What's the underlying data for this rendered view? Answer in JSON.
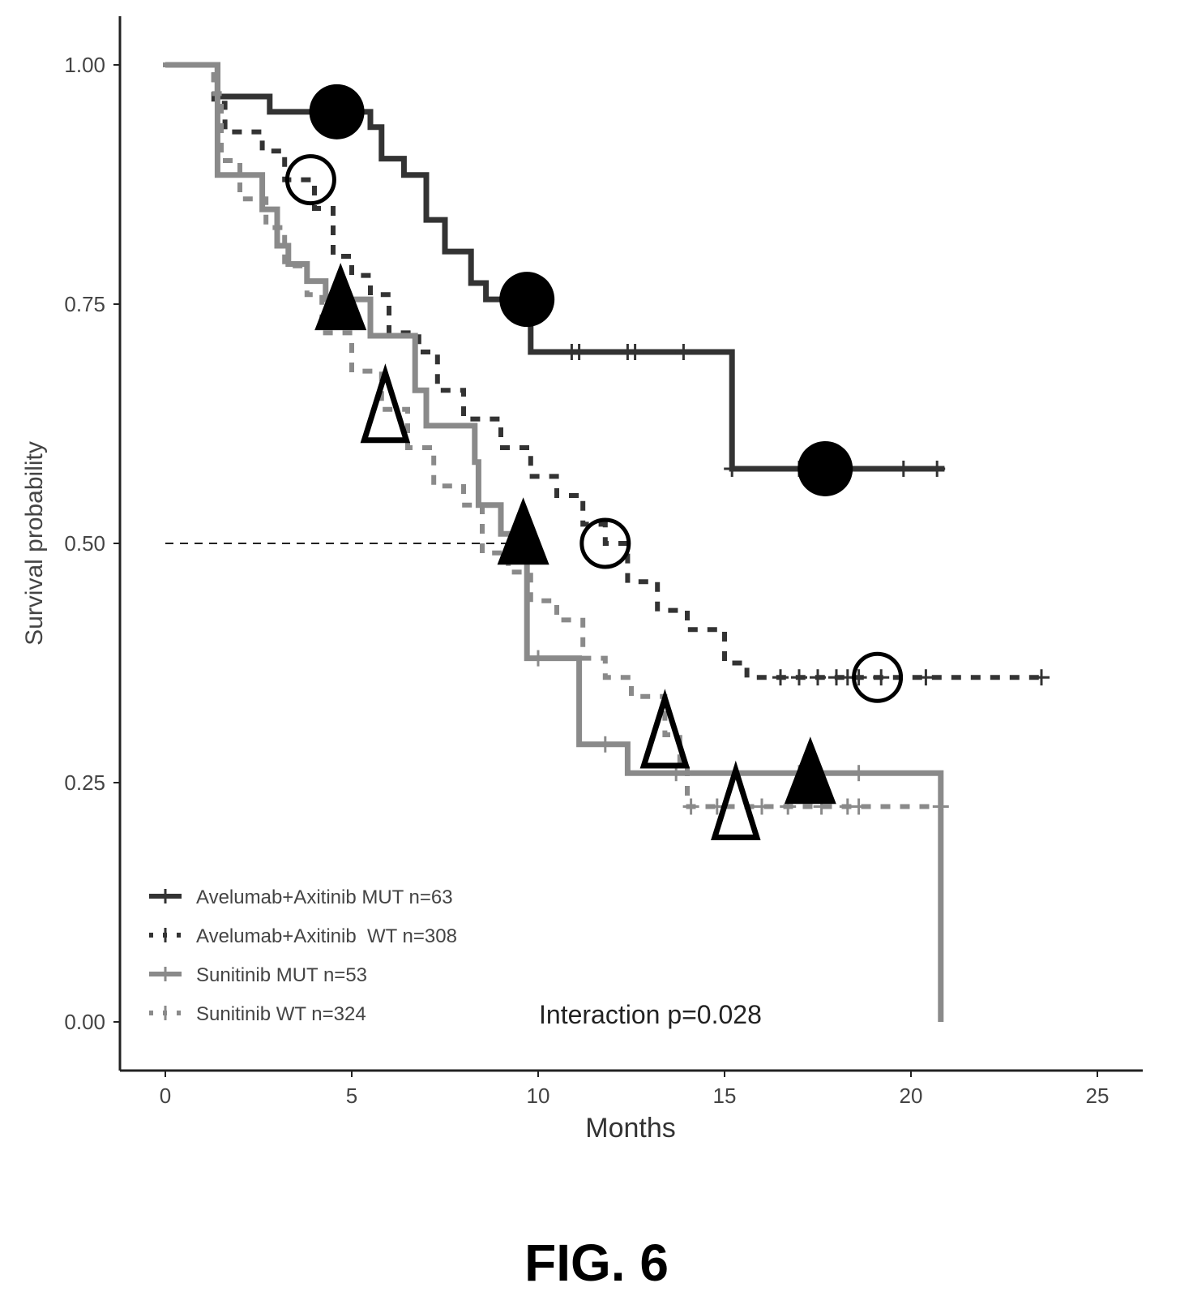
{
  "chart_data": {
    "type": "line",
    "subtype": "kaplan-meier",
    "title": "",
    "xlabel": "Months",
    "ylabel": "Survival probability",
    "xlim": [
      -1.2,
      26.5
    ],
    "ylim": [
      -0.05,
      1.05
    ],
    "x_ticks": [
      0,
      5,
      10,
      15,
      20,
      25
    ],
    "x_tick_labels": [
      "0",
      "5",
      "10",
      "15",
      "20",
      "25"
    ],
    "y_ticks": [
      0,
      0.25,
      0.5,
      0.75,
      1.0
    ],
    "y_tick_labels": [
      "0.00",
      "0.25",
      "0.50",
      "0.75",
      "1.00"
    ],
    "grid": false,
    "legend_position": "bottom-left",
    "median_reference": {
      "y": 0.5,
      "x_start": 0,
      "x_end": 9.9,
      "style": "dashed"
    },
    "annotation": "Interaction p=0.028",
    "series": [
      {
        "name": "Avelumab+Axitinib MUT n=63",
        "style": "solid",
        "color": "#333333",
        "steps": [
          [
            0,
            1.0
          ],
          [
            1.4,
            1.0
          ],
          [
            1.4,
            0.967
          ],
          [
            2.8,
            0.967
          ],
          [
            2.8,
            0.951
          ],
          [
            5.5,
            0.951
          ],
          [
            5.5,
            0.935
          ],
          [
            5.8,
            0.935
          ],
          [
            5.8,
            0.902
          ],
          [
            6.4,
            0.902
          ],
          [
            6.4,
            0.885
          ],
          [
            7.0,
            0.885
          ],
          [
            7.0,
            0.838
          ],
          [
            7.5,
            0.838
          ],
          [
            7.5,
            0.805
          ],
          [
            8.2,
            0.805
          ],
          [
            8.2,
            0.772
          ],
          [
            8.6,
            0.772
          ],
          [
            8.6,
            0.755
          ],
          [
            9.8,
            0.755
          ],
          [
            9.8,
            0.7
          ],
          [
            15.2,
            0.7
          ],
          [
            15.2,
            0.578
          ],
          [
            20.9,
            0.578
          ]
        ],
        "censor_x": [
          10.9,
          11.1,
          12.4,
          12.6,
          13.9,
          15.2,
          17.0,
          19.8,
          20.7
        ],
        "marker": {
          "shape": "filled-circle",
          "x": [
            4.6,
            9.7,
            17.7
          ]
        }
      },
      {
        "name": "Avelumab+Axitinib  WT n=308",
        "style": "dotted",
        "color": "#333333",
        "steps": [
          [
            0,
            1.0
          ],
          [
            1.3,
            1.0
          ],
          [
            1.3,
            0.96
          ],
          [
            1.6,
            0.96
          ],
          [
            1.6,
            0.93
          ],
          [
            2.6,
            0.91
          ],
          [
            3.2,
            0.88
          ],
          [
            4.0,
            0.85
          ],
          [
            4.5,
            0.8
          ],
          [
            5.0,
            0.78
          ],
          [
            5.5,
            0.76
          ],
          [
            6.0,
            0.72
          ],
          [
            6.8,
            0.7
          ],
          [
            7.3,
            0.66
          ],
          [
            8.0,
            0.63
          ],
          [
            9.0,
            0.6
          ],
          [
            9.8,
            0.57
          ],
          [
            10.5,
            0.55
          ],
          [
            11.2,
            0.52
          ],
          [
            11.8,
            0.5
          ],
          [
            12.4,
            0.46
          ],
          [
            13.2,
            0.43
          ],
          [
            14.0,
            0.41
          ],
          [
            15.0,
            0.375
          ],
          [
            15.6,
            0.36
          ],
          [
            23.5,
            0.36
          ]
        ],
        "censor_x": [
          16.5,
          17.0,
          17.5,
          18.0,
          18.3,
          18.6,
          19.2,
          20.4,
          23.5
        ],
        "marker": {
          "shape": "open-circle",
          "x": [
            3.9,
            11.8,
            19.1
          ]
        }
      },
      {
        "name": "Sunitinib MUT n=53",
        "style": "solid",
        "color": "#8a8a8a",
        "steps": [
          [
            0,
            1.0
          ],
          [
            1.4,
            1.0
          ],
          [
            1.4,
            0.885
          ],
          [
            2.6,
            0.885
          ],
          [
            2.6,
            0.849
          ],
          [
            3.0,
            0.849
          ],
          [
            3.0,
            0.811
          ],
          [
            3.3,
            0.811
          ],
          [
            3.3,
            0.792
          ],
          [
            3.8,
            0.792
          ],
          [
            3.8,
            0.774
          ],
          [
            4.3,
            0.774
          ],
          [
            4.3,
            0.755
          ],
          [
            5.5,
            0.755
          ],
          [
            5.5,
            0.717
          ],
          [
            6.7,
            0.717
          ],
          [
            6.7,
            0.66
          ],
          [
            7.0,
            0.66
          ],
          [
            7.0,
            0.623
          ],
          [
            8.3,
            0.623
          ],
          [
            8.3,
            0.585
          ],
          [
            8.4,
            0.585
          ],
          [
            8.4,
            0.54
          ],
          [
            9.0,
            0.54
          ],
          [
            9.0,
            0.51
          ],
          [
            9.7,
            0.51
          ],
          [
            9.7,
            0.38
          ],
          [
            11.1,
            0.38
          ],
          [
            11.1,
            0.29
          ],
          [
            12.4,
            0.29
          ],
          [
            12.4,
            0.26
          ],
          [
            20.8,
            0.26
          ],
          [
            20.8,
            0.0
          ]
        ],
        "censor_x": [
          10.0,
          11.8,
          13.7,
          17.0,
          18.6
        ],
        "marker": {
          "shape": "filled-triangle",
          "x": [
            4.7,
            9.6,
            17.3
          ]
        }
      },
      {
        "name": "Sunitinib WT n=324",
        "style": "dotted",
        "color": "#8a8a8a",
        "steps": [
          [
            0,
            1.0
          ],
          [
            1.3,
            0.97
          ],
          [
            1.5,
            0.9
          ],
          [
            2.0,
            0.86
          ],
          [
            2.7,
            0.83
          ],
          [
            3.2,
            0.79
          ],
          [
            3.8,
            0.76
          ],
          [
            4.2,
            0.72
          ],
          [
            5.0,
            0.68
          ],
          [
            5.8,
            0.64
          ],
          [
            6.5,
            0.6
          ],
          [
            7.2,
            0.56
          ],
          [
            8.0,
            0.54
          ],
          [
            8.5,
            0.49
          ],
          [
            9.2,
            0.47
          ],
          [
            9.8,
            0.44
          ],
          [
            10.5,
            0.42
          ],
          [
            11.2,
            0.38
          ],
          [
            11.8,
            0.36
          ],
          [
            12.5,
            0.34
          ],
          [
            13.4,
            0.3
          ],
          [
            13.8,
            0.27
          ],
          [
            14.0,
            0.225
          ],
          [
            20.8,
            0.225
          ]
        ],
        "censor_x": [
          14.1,
          14.8,
          16.0,
          16.7,
          17.6,
          18.3,
          18.6,
          20.8
        ],
        "marker": {
          "shape": "open-triangle",
          "x": [
            5.9,
            13.4,
            15.3
          ]
        }
      }
    ]
  },
  "figure_caption": "FIG. 6"
}
